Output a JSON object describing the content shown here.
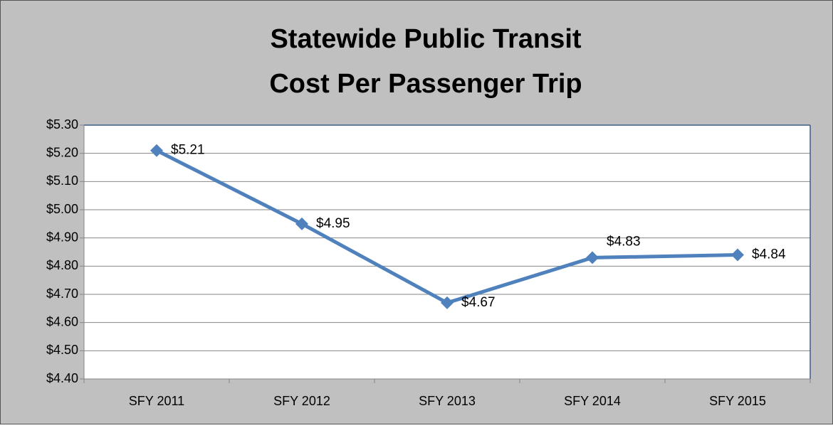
{
  "chart_data": {
    "type": "line",
    "title": [
      "Statewide Public Transit",
      "Cost Per Passenger Trip"
    ],
    "categories": [
      "SFY 2011",
      "SFY 2012",
      "SFY 2013",
      "SFY 2014",
      "SFY 2015"
    ],
    "series": [
      {
        "color": "#4f81bd",
        "values": [
          5.21,
          4.95,
          4.67,
          4.83,
          4.84
        ],
        "value_labels": [
          "$5.21",
          "$4.95",
          "$4.67",
          "$4.83",
          "$4.84"
        ]
      }
    ],
    "ylim": [
      4.4,
      5.3
    ],
    "yticks": [
      {
        "value": 4.4,
        "label": "$4.40"
      },
      {
        "value": 4.5,
        "label": "$4.50"
      },
      {
        "value": 4.6,
        "label": "$4.60"
      },
      {
        "value": 4.7,
        "label": "$4.70"
      },
      {
        "value": 4.8,
        "label": "$4.80"
      },
      {
        "value": 4.9,
        "label": "$4.90"
      },
      {
        "value": 5.0,
        "label": "$5.00"
      },
      {
        "value": 5.1,
        "label": "$5.10"
      },
      {
        "value": 5.2,
        "label": "$5.20"
      },
      {
        "value": 5.3,
        "label": "$5.30"
      }
    ],
    "grid": true
  }
}
